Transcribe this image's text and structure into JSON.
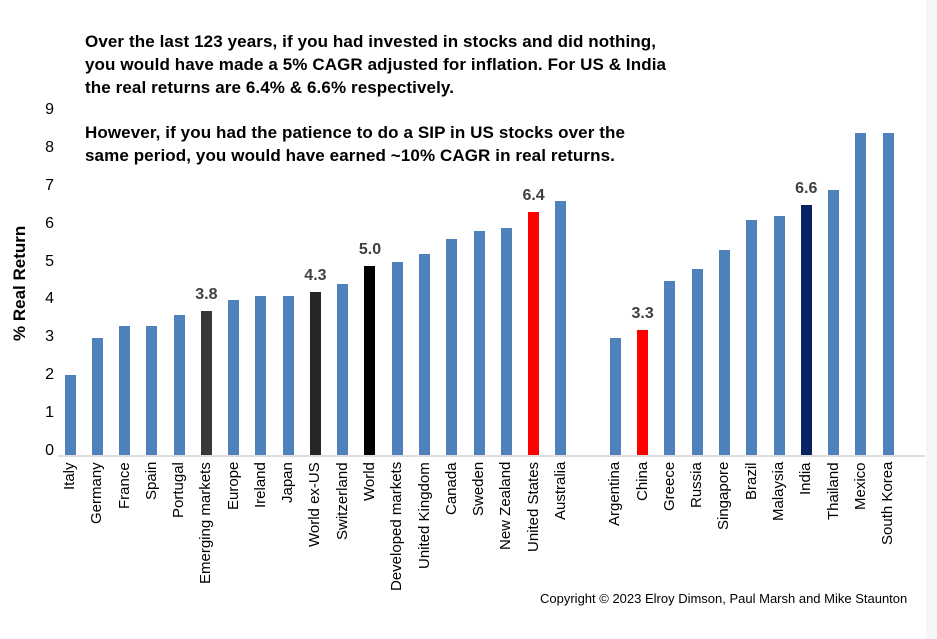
{
  "annotation": {
    "para1": "Over the last 123 years, if you had invested in stocks and did nothing,\nyou would have made a 5% CAGR adjusted for inflation. For US & India\nthe real returns are 6.4% & 6.6% respectively.",
    "para2": "However, if you had the patience to do a SIP in US stocks over the\nsame period, you would have earned ~10% CAGR in real returns."
  },
  "footer": {
    "copyright": "Copyright © 2023 Elroy Dimson, Paul Marsh and Mike Staunton"
  },
  "chart_data": {
    "type": "bar",
    "title": "",
    "xlabel": "",
    "ylabel": "% Real Return",
    "ylim": [
      0,
      9
    ],
    "yticks": [
      0,
      1,
      2,
      3,
      4,
      5,
      6,
      7,
      8,
      9
    ],
    "grid": false,
    "legend_position": "none",
    "colors": {
      "default_bar": "#4F81BD",
      "highlight_red": "#FE0000",
      "highlight_navy": "#0A2262",
      "highlight_gray": "#383838",
      "highlight_black": "#000000",
      "data_label_text": "#404040",
      "axis_line": "#DDDDDD"
    },
    "bars": [
      {
        "label": "Italy",
        "value": 2.1
      },
      {
        "label": "Germany",
        "value": 3.1
      },
      {
        "label": "France",
        "value": 3.4
      },
      {
        "label": "Spain",
        "value": 3.4
      },
      {
        "label": "Portugal",
        "value": 3.7
      },
      {
        "label": "Emerging markets",
        "value": 3.8,
        "color": "#383838",
        "data_label": "3.8"
      },
      {
        "label": "Europe",
        "value": 4.1
      },
      {
        "label": "Ireland",
        "value": 4.2
      },
      {
        "label": "Japan",
        "value": 4.2
      },
      {
        "label": "World ex-US",
        "value": 4.3,
        "color": "#262626",
        "data_label": "4.3"
      },
      {
        "label": "Switzerland",
        "value": 4.5
      },
      {
        "label": "World",
        "value": 5.0,
        "color": "#000000",
        "data_label": "5.0"
      },
      {
        "label": "Developed markets",
        "value": 5.1
      },
      {
        "label": "United Kingdom",
        "value": 5.3
      },
      {
        "label": "Canada",
        "value": 5.7
      },
      {
        "label": "Sweden",
        "value": 5.9
      },
      {
        "label": "New Zealand",
        "value": 6.0
      },
      {
        "label": "United States",
        "value": 6.4,
        "color": "#FE0000",
        "data_label": "6.4"
      },
      {
        "label": "Australia",
        "value": 6.7
      },
      {
        "label": "Argentina",
        "value": 3.1,
        "gap_before": true
      },
      {
        "label": "China",
        "value": 3.3,
        "color": "#FE0000",
        "data_label": "3.3"
      },
      {
        "label": "Greece",
        "value": 4.6
      },
      {
        "label": "Russia",
        "value": 4.9
      },
      {
        "label": "Singapore",
        "value": 5.4
      },
      {
        "label": "Brazil",
        "value": 6.2
      },
      {
        "label": "Malaysia",
        "value": 6.3
      },
      {
        "label": "India",
        "value": 6.6,
        "color": "#0A2262",
        "data_label": "6.6"
      },
      {
        "label": "Thailand",
        "value": 7.0
      },
      {
        "label": "Mexico",
        "value": 8.5
      },
      {
        "label": "South Korea",
        "value": 8.5
      }
    ]
  }
}
